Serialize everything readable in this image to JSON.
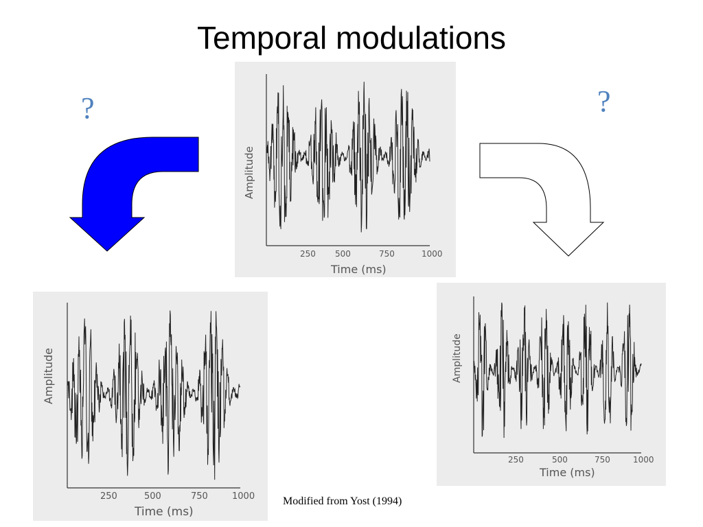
{
  "slide": {
    "title": "Temporal modulations",
    "question_left": "?",
    "question_right": "?",
    "credit": "Modified from Yost (1994)"
  },
  "colors": {
    "left_arrow_fill": "#0000ff",
    "right_arrow_fill": "#ffffff",
    "question_mark": "#4f81bd",
    "panel_bg": "#ececec"
  },
  "panels": {
    "center": {
      "ylabel": "Amplitude",
      "xlabel": "Time (ms)",
      "ticks": [
        "250",
        "500",
        "750",
        "1000"
      ],
      "modulation_bursts": 4
    },
    "left": {
      "ylabel": "Amplitude",
      "xlabel": "Time (ms)",
      "ticks": [
        "250",
        "500",
        "750",
        "1000"
      ],
      "modulation_bursts": 4
    },
    "right": {
      "ylabel": "Amplitude",
      "xlabel": "Time (ms)",
      "ticks": [
        "250",
        "500",
        "750",
        "1000"
      ],
      "modulation_bursts": 8
    }
  }
}
